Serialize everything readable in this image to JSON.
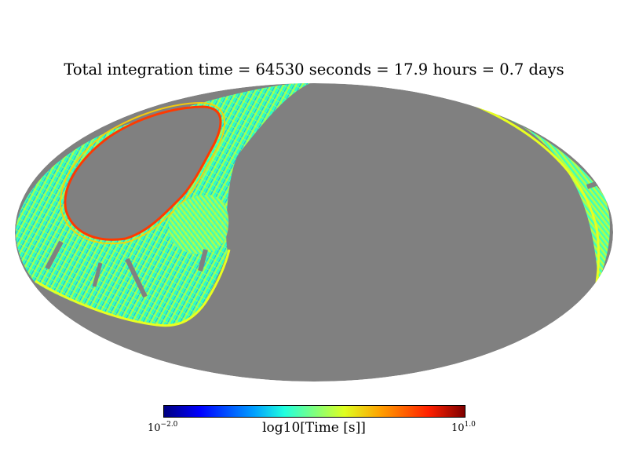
{
  "chart_data": {
    "type": "heatmap",
    "projection": "mollweide",
    "title": "Total integration time = 64530 seconds = 17.9 hours = 0.7 days",
    "colorbar": {
      "label": "log10[Time [s]]",
      "min_base": "10",
      "min_exp": "−2.0",
      "max_base": "10",
      "max_exp": "1.0",
      "log_range": [
        -2.0,
        1.0
      ],
      "colormap": "jet"
    },
    "unobserved_color": "#808080"
  }
}
